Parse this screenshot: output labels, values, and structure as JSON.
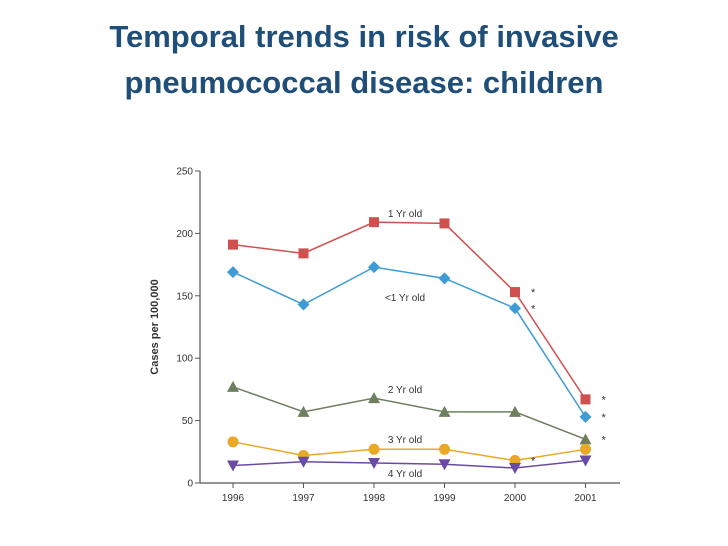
{
  "slide": {
    "title_line1": "Temporal trends in risk of invasive",
    "title_line2": "pneumococcal disease:  children",
    "title_color": "#1f4e79"
  },
  "chart_data": {
    "type": "line",
    "title": "",
    "xlabel": "",
    "ylabel": "Cases per 100,000",
    "x": [
      "1996",
      "1997",
      "1998",
      "1999",
      "2000",
      "2001"
    ],
    "ylim": [
      0,
      250
    ],
    "yticks": [
      0,
      50,
      100,
      150,
      200,
      250
    ],
    "grid": false,
    "legend": "inline labels",
    "series": [
      {
        "name": "1 Yr old",
        "values": [
          191,
          184,
          209,
          208,
          153,
          67
        ],
        "color": "#d0504f",
        "marker": "square",
        "asterisks": [
          false,
          false,
          false,
          false,
          true,
          true
        ]
      },
      {
        "name": "<1 Yr old",
        "values": [
          169,
          143,
          173,
          164,
          140,
          53
        ],
        "color": "#3f9bd6",
        "marker": "diamond",
        "asterisks": [
          false,
          false,
          false,
          false,
          true,
          true
        ]
      },
      {
        "name": "2 Yr old",
        "values": [
          77,
          57,
          68,
          57,
          57,
          35
        ],
        "color": "#6e7f5e",
        "marker": "triangle-up",
        "asterisks": [
          false,
          false,
          false,
          false,
          false,
          true
        ]
      },
      {
        "name": "3 Yr old",
        "values": [
          33,
          22,
          27,
          27,
          18,
          27
        ],
        "color": "#e9a825",
        "marker": "circle",
        "asterisks": [
          false,
          false,
          false,
          false,
          true,
          false
        ]
      },
      {
        "name": "4 Yr old",
        "values": [
          14,
          17,
          16,
          15,
          12,
          18
        ],
        "color": "#6a4aa5",
        "marker": "triangle-down",
        "asterisks": [
          false,
          false,
          false,
          false,
          false,
          false
        ]
      }
    ],
    "asterisk_symbol": "*"
  }
}
